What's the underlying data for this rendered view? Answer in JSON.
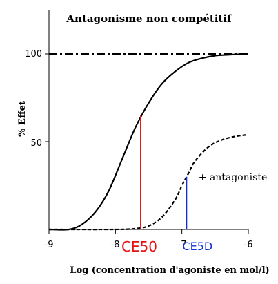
{
  "chart_data": {
    "type": "line",
    "title": "Antagonisme non compétitif",
    "xlabel": "Log (concentration d'agoniste en mol/l)",
    "ylabel": "% Effet",
    "xlim": [
      -9,
      -6
    ],
    "ylim": [
      0,
      100
    ],
    "x_ticks": [
      "-9",
      "-8",
      "-7",
      "-6"
    ],
    "y_ticks": [
      "50",
      "100"
    ],
    "reference_line": {
      "y": 100,
      "style": "dash-dot"
    },
    "series": [
      {
        "name": "",
        "style": "solid",
        "x": [
          -9.0,
          -8.7,
          -8.5,
          -8.3,
          -8.1,
          -7.9,
          -7.7,
          -7.5,
          -7.3,
          -7.1,
          -6.9,
          -6.7,
          -6.5,
          -6.3,
          -6.0
        ],
        "y": [
          0,
          0,
          3,
          10,
          22,
          40,
          58,
          72,
          83,
          90,
          95,
          97.5,
          99,
          99.5,
          100
        ]
      },
      {
        "name": "+ antagoniste",
        "style": "dashed",
        "x": [
          -9.0,
          -8.0,
          -7.7,
          -7.5,
          -7.3,
          -7.1,
          -7.0,
          -6.9,
          -6.8,
          -6.6,
          -6.4,
          -6.2,
          -6.0
        ],
        "y": [
          0,
          0,
          0.5,
          2,
          7,
          17,
          25,
          32,
          39,
          47,
          51,
          53,
          54
        ]
      }
    ],
    "annotations": [
      {
        "text": "+ antagoniste",
        "x": -6.75,
        "y": 28
      },
      {
        "text": "CE50",
        "x": -7.62,
        "color": "#e81010",
        "line_top": 65
      },
      {
        "text": "CE5D",
        "x": -6.93,
        "color": "#1030d8",
        "line_top": 30
      }
    ]
  }
}
